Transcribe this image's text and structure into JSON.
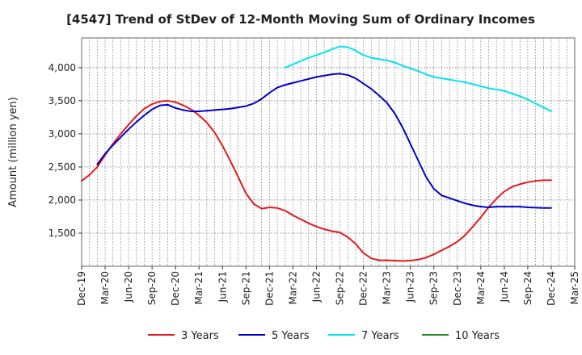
{
  "chart_data": {
    "type": "line",
    "title": "[4547]  Trend of StDev of 12-Month Moving Sum of Ordinary Incomes",
    "ylabel": "Amount (million yen)",
    "xlabel": "",
    "x_labels": [
      "Dec-19",
      "Mar-20",
      "Jun-20",
      "Sep-20",
      "Dec-20",
      "Mar-21",
      "Jun-21",
      "Sep-21",
      "Dec-21",
      "Mar-22",
      "Jun-22",
      "Sep-22",
      "Dec-22",
      "Mar-23",
      "Jun-23",
      "Sep-23",
      "Dec-23",
      "Mar-24",
      "Jun-24",
      "Sep-24",
      "Dec-24",
      "Mar-25"
    ],
    "y_ticks": [
      1500,
      2000,
      2500,
      3000,
      3500,
      4000
    ],
    "y_tick_labels": [
      "1,500",
      "2,000",
      "2,500",
      "3,000",
      "3,500",
      "4,000"
    ],
    "ylim": [
      1000,
      4450
    ],
    "grid": true,
    "legend_position": "bottom",
    "series": [
      {
        "name": "3 Years",
        "color": "#e31a1c",
        "points": [
          [
            "Dec-19",
            2290
          ],
          [
            "Jan-20",
            2380
          ],
          [
            "Feb-20",
            2500
          ],
          [
            "Mar-20",
            2680
          ],
          [
            "Apr-20",
            2850
          ],
          [
            "May-20",
            3000
          ],
          [
            "Jun-20",
            3140
          ],
          [
            "Jul-20",
            3270
          ],
          [
            "Aug-20",
            3380
          ],
          [
            "Sep-20",
            3450
          ],
          [
            "Oct-20",
            3490
          ],
          [
            "Nov-20",
            3500
          ],
          [
            "Dec-20",
            3480
          ],
          [
            "Jan-21",
            3430
          ],
          [
            "Feb-21",
            3370
          ],
          [
            "Mar-21",
            3280
          ],
          [
            "Apr-21",
            3170
          ],
          [
            "May-21",
            3020
          ],
          [
            "Jun-21",
            2820
          ],
          [
            "Jul-21",
            2590
          ],
          [
            "Aug-21",
            2350
          ],
          [
            "Sep-21",
            2100
          ],
          [
            "Oct-21",
            1940
          ],
          [
            "Nov-21",
            1870
          ],
          [
            "Dec-21",
            1890
          ],
          [
            "Jan-22",
            1880
          ],
          [
            "Feb-22",
            1840
          ],
          [
            "Mar-22",
            1770
          ],
          [
            "Apr-22",
            1710
          ],
          [
            "May-22",
            1650
          ],
          [
            "Jun-22",
            1600
          ],
          [
            "Jul-22",
            1560
          ],
          [
            "Aug-22",
            1530
          ],
          [
            "Sep-22",
            1510
          ],
          [
            "Oct-22",
            1440
          ],
          [
            "Nov-22",
            1340
          ],
          [
            "Dec-22",
            1200
          ],
          [
            "Jan-23",
            1120
          ],
          [
            "Feb-23",
            1090
          ],
          [
            "Mar-23",
            1090
          ],
          [
            "Apr-23",
            1085
          ],
          [
            "May-23",
            1080
          ],
          [
            "Jun-23",
            1085
          ],
          [
            "Jul-23",
            1100
          ],
          [
            "Aug-23",
            1130
          ],
          [
            "Sep-23",
            1180
          ],
          [
            "Oct-23",
            1240
          ],
          [
            "Nov-23",
            1300
          ],
          [
            "Dec-23",
            1370
          ],
          [
            "Jan-24",
            1470
          ],
          [
            "Feb-24",
            1600
          ],
          [
            "Mar-24",
            1740
          ],
          [
            "Apr-24",
            1890
          ],
          [
            "May-24",
            2020
          ],
          [
            "Jun-24",
            2130
          ],
          [
            "Jul-24",
            2200
          ],
          [
            "Aug-24",
            2240
          ],
          [
            "Sep-24",
            2270
          ],
          [
            "Oct-24",
            2290
          ],
          [
            "Nov-24",
            2300
          ],
          [
            "Dec-24",
            2300
          ]
        ]
      },
      {
        "name": "5 Years",
        "color": "#0000cd",
        "points": [
          [
            "Feb-20",
            2540
          ],
          [
            "Mar-20",
            2700
          ],
          [
            "Apr-20",
            2830
          ],
          [
            "May-20",
            2950
          ],
          [
            "Jun-20",
            3070
          ],
          [
            "Jul-20",
            3180
          ],
          [
            "Aug-20",
            3280
          ],
          [
            "Sep-20",
            3370
          ],
          [
            "Oct-20",
            3430
          ],
          [
            "Nov-20",
            3440
          ],
          [
            "Dec-20",
            3390
          ],
          [
            "Jan-21",
            3360
          ],
          [
            "Feb-21",
            3340
          ],
          [
            "Mar-21",
            3340
          ],
          [
            "Apr-21",
            3350
          ],
          [
            "May-21",
            3360
          ],
          [
            "Jun-21",
            3370
          ],
          [
            "Jul-21",
            3380
          ],
          [
            "Aug-21",
            3400
          ],
          [
            "Sep-21",
            3420
          ],
          [
            "Oct-21",
            3460
          ],
          [
            "Nov-21",
            3530
          ],
          [
            "Dec-21",
            3620
          ],
          [
            "Jan-22",
            3700
          ],
          [
            "Feb-22",
            3740
          ],
          [
            "Mar-22",
            3770
          ],
          [
            "Apr-22",
            3800
          ],
          [
            "May-22",
            3830
          ],
          [
            "Jun-22",
            3860
          ],
          [
            "Jul-22",
            3880
          ],
          [
            "Aug-22",
            3900
          ],
          [
            "Sep-22",
            3910
          ],
          [
            "Oct-22",
            3890
          ],
          [
            "Nov-22",
            3840
          ],
          [
            "Dec-22",
            3760
          ],
          [
            "Jan-23",
            3680
          ],
          [
            "Feb-23",
            3580
          ],
          [
            "Mar-23",
            3470
          ],
          [
            "Apr-23",
            3310
          ],
          [
            "May-23",
            3100
          ],
          [
            "Jun-23",
            2850
          ],
          [
            "Jul-23",
            2600
          ],
          [
            "Aug-23",
            2350
          ],
          [
            "Sep-23",
            2170
          ],
          [
            "Oct-23",
            2070
          ],
          [
            "Nov-23",
            2030
          ],
          [
            "Dec-23",
            1990
          ],
          [
            "Jan-24",
            1950
          ],
          [
            "Feb-24",
            1920
          ],
          [
            "Mar-24",
            1900
          ],
          [
            "Apr-24",
            1890
          ],
          [
            "May-24",
            1900
          ],
          [
            "Jun-24",
            1900
          ],
          [
            "Jul-24",
            1900
          ],
          [
            "Aug-24",
            1900
          ],
          [
            "Sep-24",
            1890
          ],
          [
            "Oct-24",
            1885
          ],
          [
            "Nov-24",
            1880
          ],
          [
            "Dec-24",
            1880
          ]
        ]
      },
      {
        "name": "7 Years",
        "color": "#00e5ee",
        "points": [
          [
            "Feb-22",
            4000
          ],
          [
            "Mar-22",
            4050
          ],
          [
            "Apr-22",
            4100
          ],
          [
            "May-22",
            4150
          ],
          [
            "Jun-22",
            4190
          ],
          [
            "Jul-22",
            4230
          ],
          [
            "Aug-22",
            4280
          ],
          [
            "Sep-22",
            4320
          ],
          [
            "Oct-22",
            4310
          ],
          [
            "Nov-22",
            4260
          ],
          [
            "Dec-22",
            4190
          ],
          [
            "Jan-23",
            4150
          ],
          [
            "Feb-23",
            4130
          ],
          [
            "Mar-23",
            4110
          ],
          [
            "Apr-23",
            4080
          ],
          [
            "May-23",
            4030
          ],
          [
            "Jun-23",
            3990
          ],
          [
            "Jul-23",
            3950
          ],
          [
            "Aug-23",
            3900
          ],
          [
            "Sep-23",
            3860
          ],
          [
            "Oct-23",
            3840
          ],
          [
            "Nov-23",
            3820
          ],
          [
            "Dec-23",
            3800
          ],
          [
            "Jan-24",
            3780
          ],
          [
            "Feb-24",
            3750
          ],
          [
            "Mar-24",
            3720
          ],
          [
            "Apr-24",
            3690
          ],
          [
            "May-24",
            3670
          ],
          [
            "Jun-24",
            3650
          ],
          [
            "Jul-24",
            3610
          ],
          [
            "Aug-24",
            3570
          ],
          [
            "Sep-24",
            3520
          ],
          [
            "Oct-24",
            3460
          ],
          [
            "Nov-24",
            3400
          ],
          [
            "Dec-24",
            3340
          ]
        ]
      },
      {
        "name": "10 Years",
        "color": "#228b22",
        "points": []
      }
    ]
  }
}
